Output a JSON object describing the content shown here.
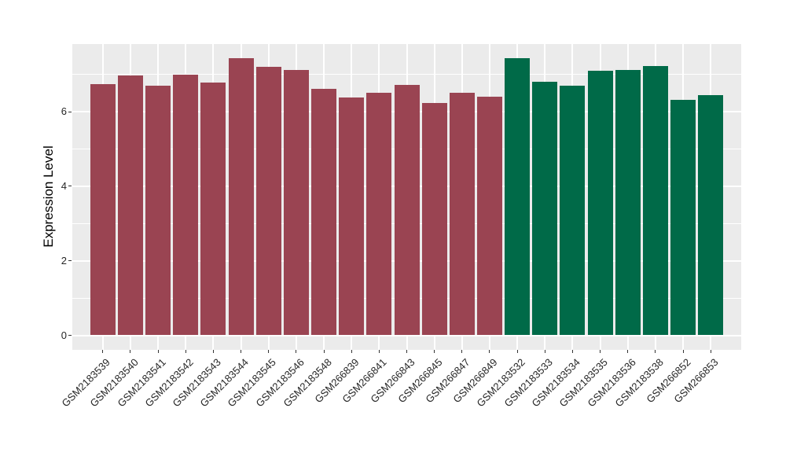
{
  "chart_data": {
    "type": "bar",
    "title": "",
    "xlabel": "",
    "ylabel": "Expression Level",
    "legend_position": "none",
    "panel_background": "#EBEBEB",
    "grid_color": "#FFFFFF",
    "grid": "on",
    "x_label_angle": -45,
    "ylim": [
      0,
      7.8
    ],
    "yticks": [
      0,
      2,
      4,
      6
    ],
    "yticks_minor": [
      1,
      3,
      5,
      7
    ],
    "group_colors": {
      "group1": "#9A4452",
      "group2": "#006A48"
    },
    "categories": [
      "GSM2183539",
      "GSM2183540",
      "GSM2183541",
      "GSM2183542",
      "GSM2183543",
      "GSM2183544",
      "GSM2183545",
      "GSM2183546",
      "GSM2183548",
      "GSM266839",
      "GSM266841",
      "GSM266843",
      "GSM266845",
      "GSM266847",
      "GSM266849",
      "GSM2183532",
      "GSM2183533",
      "GSM2183534",
      "GSM2183535",
      "GSM2183536",
      "GSM2183538",
      "GSM266852",
      "GSM266853"
    ],
    "values": [
      6.73,
      6.97,
      6.69,
      7.0,
      6.79,
      7.44,
      7.2,
      7.12,
      6.62,
      6.38,
      6.5,
      6.71,
      6.23,
      6.5,
      6.41,
      7.43,
      6.81,
      6.7,
      7.09,
      7.12,
      7.22,
      6.31,
      6.44
    ],
    "bar_groups": [
      "group1",
      "group1",
      "group1",
      "group1",
      "group1",
      "group1",
      "group1",
      "group1",
      "group1",
      "group1",
      "group1",
      "group1",
      "group1",
      "group1",
      "group1",
      "group2",
      "group2",
      "group2",
      "group2",
      "group2",
      "group2",
      "group2",
      "group2"
    ]
  }
}
